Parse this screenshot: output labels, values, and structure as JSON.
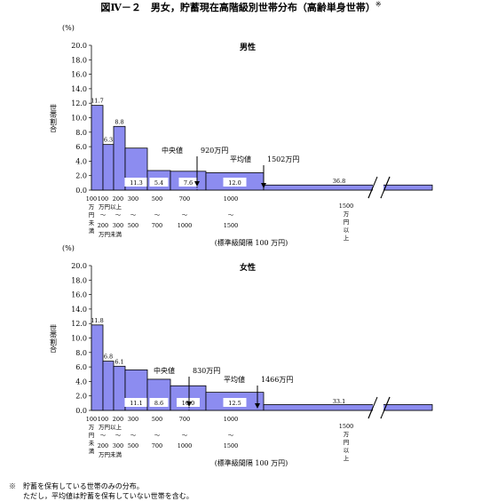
{
  "figure": {
    "title": "図Ⅳ－２　男女，貯蓄現在高階級別世帯分布（高齢単身世帯）",
    "title_mark": "※"
  },
  "chart_data": [
    {
      "type": "bar",
      "title": "男性",
      "ylabel": "世帯割合",
      "yunit": "(%)",
      "ylim": [
        0,
        20
      ],
      "yticks": [
        "0.0",
        "2.0",
        "4.0",
        "6.0",
        "8.0",
        "10.0",
        "12.0",
        "14.0",
        "16.0",
        "18.0",
        "20.0"
      ],
      "xlabel": "(標準級間隔 100 万円)",
      "values": [
        11.7,
        6.3,
        8.8,
        5.8,
        2.7,
        2.6,
        2.4,
        0.7
      ],
      "data_labels": [
        "11.7",
        "6.3",
        "8.8",
        "11.3",
        "5.4",
        "7.6",
        "12.0",
        "36.8"
      ],
      "median": {
        "label": "中央値",
        "value": "920万円"
      },
      "mean": {
        "label": "平均値",
        "value": "1502万円"
      }
    },
    {
      "type": "bar",
      "title": "女性",
      "ylabel": "世帯割合",
      "yunit": "(%)",
      "ylim": [
        0,
        20
      ],
      "yticks": [
        "0.0",
        "2.0",
        "4.0",
        "6.0",
        "8.0",
        "10.0",
        "12.0",
        "14.0",
        "16.0",
        "18.0",
        "20.0"
      ],
      "xlabel": "(標準級間隔 100 万円)",
      "values": [
        11.8,
        6.8,
        6.1,
        5.6,
        4.3,
        3.4,
        2.5,
        0.8
      ],
      "data_labels": [
        "11.8",
        "6.8",
        "6.1",
        "11.1",
        "8.6",
        "10.0",
        "12.5",
        "33.1"
      ],
      "median": {
        "label": "中央値",
        "value": "830万円"
      },
      "mean": {
        "label": "平均値",
        "value": "1466万円"
      }
    }
  ],
  "x_axis": {
    "first_col": [
      "100",
      "万",
      "円",
      "未",
      "満"
    ],
    "col_100_top": [
      "100",
      "万円以上"
    ],
    "col_100_bottom": [
      "200",
      "万円未満"
    ],
    "col_200": [
      "200",
      "300"
    ],
    "col_300": [
      "300",
      "500"
    ],
    "col_500": [
      "500",
      "700"
    ],
    "col_700": [
      "700",
      "1000"
    ],
    "col_1000": [
      "1000",
      "1500"
    ],
    "last_col": [
      "1500",
      "万",
      "円",
      "以",
      "上"
    ],
    "tilde": "～"
  },
  "notes": {
    "mark": "※",
    "line1": "貯蓄を保有している世帯のみの分布。",
    "line2": "ただし，平均値は貯蓄を保有していない世帯を含む。"
  },
  "colors": {
    "bar_fill": "#8c8cf0",
    "bar_stroke": "#000000"
  }
}
